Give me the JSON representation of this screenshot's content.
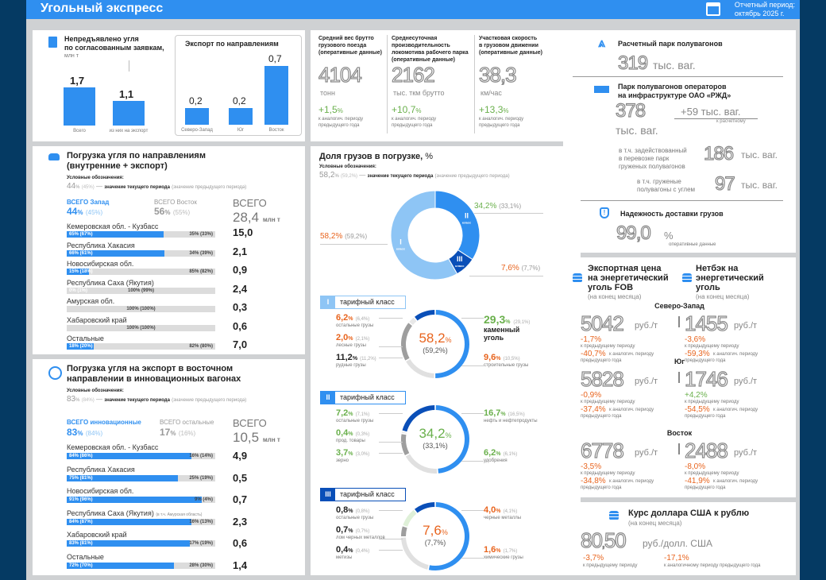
{
  "header": {
    "title": "Угольный экспресс",
    "period_line1": "Отчетный период:",
    "period_line2": "октябрь 2025 г."
  },
  "undelivered": {
    "title_line1": "Непредъявлено угля",
    "title_line2": "по согласованным заявкам,",
    "unit": "млн т",
    "bars": [
      {
        "label": "Всего",
        "value": "1,7",
        "v": 1.7
      },
      {
        "label": "из них на экспорт",
        "value": "1,1",
        "v": 1.1
      }
    ],
    "export_title": "Экспорт по направлениям",
    "export_bars": [
      {
        "label": "Северо-Запад",
        "value": "0,2",
        "v": 0.2
      },
      {
        "label": "Юг",
        "value": "0,2",
        "v": 0.2
      },
      {
        "label": "Восток",
        "value": "0,7",
        "v": 0.7
      }
    ]
  },
  "kpis": [
    {
      "title": [
        "Средний вес брутто",
        "грузового поезда",
        "(оперативные данные)"
      ],
      "value": "4104",
      "unit": "тонн",
      "delta": "+1,5",
      "pct": "%",
      "note": [
        "к аналогич. периоду",
        "предыдущего года"
      ]
    },
    {
      "title": [
        "Среднесуточная",
        "производительность",
        "локомотива рабочего парка",
        "(оперативные данные)"
      ],
      "value": "2162",
      "unit": "тыс. ткм брутто",
      "delta": "+10,7",
      "pct": "%",
      "note": [
        "к аналогич. периоду",
        "предыдущего года"
      ]
    },
    {
      "title": [
        "Участковая скорость",
        "в грузовом движении",
        "(оперативные данные)"
      ],
      "value": "38,3",
      "unit": "км/час",
      "delta": "+13,3",
      "pct": "%",
      "note": [
        "к аналогич. периоду",
        "предыдущего года"
      ]
    }
  ],
  "fleet": {
    "calc_title": "Расчетный парк полувагонов",
    "calc_value": "319",
    "calc_unit": "тыс. ваг.",
    "ops_title_line1": "Парк полувагонов операторов",
    "ops_title_line2": "на инфраструктуре ОАО «РЖД»",
    "ops_value": "378",
    "ops_unit": "тыс. ваг.",
    "ops_delta": "+59 тыс. ваг.",
    "ops_delta_note": "к расчетному",
    "engaged_label": [
      "в т.ч. задействованный",
      "в перевозке парк",
      "груженых полувагонов"
    ],
    "engaged_value": "186",
    "engaged_unit": "тыс. ваг.",
    "coal_label": [
      "в т.ч. груженые",
      "полувагоны с углем"
    ],
    "coal_value": "97",
    "coal_unit": "тыс. ваг.",
    "reliability_title": "Надежность доставки грузов",
    "reliability_value": "99,0",
    "reliability_pct": "%",
    "reliability_note": "оперативные данные"
  },
  "loading": {
    "title_line1": "Погрузка угля по направлениям",
    "title_line2": "(внутренние + экспорт)",
    "legend_title": "Условные обозначения:",
    "legend_cur": "44",
    "legend_pct": "%",
    "legend_prev": "(45%)",
    "legend_dash": "—",
    "legend_bold": "значение текущего периода",
    "legend_rest": "(значение предыдущего периода)",
    "west_label": "ВСЕГО Запад",
    "west_value": "44",
    "west_prev": "(45%)",
    "east_label": "ВСЕГО Восток",
    "east_value": "56",
    "east_prev": "(55%)",
    "total_label": "ВСЕГО",
    "total_value": "28,4",
    "total_unit": "млн т",
    "pct": "%",
    "rows": [
      {
        "name": "Кемеровская обл. - Кузбасс",
        "west": 65,
        "left": "65% (67%)",
        "right": "35% (33%)",
        "total": "15,0"
      },
      {
        "name": "Республика Хакасия",
        "west": 66,
        "left": "66% (61%)",
        "right": "34% (39%)",
        "total": "2,1"
      },
      {
        "name": "Новосибирская обл.",
        "west": 15,
        "left": "15% (18%)",
        "right": "85% (82%)",
        "total": "0,9"
      },
      {
        "name": "Республика Саха (Якутия)",
        "west": 0,
        "left": "0% (1%)",
        "right": "100% (99%)",
        "total": "2,4"
      },
      {
        "name": "Амурская обл.",
        "west": 0,
        "left": "",
        "right": "100% (100%)",
        "total": "0,3"
      },
      {
        "name": "Хабаровский край",
        "west": 0,
        "left": "",
        "right": "100% (100%)",
        "total": "0,6"
      },
      {
        "name": "Остальные",
        "west": 18,
        "left": "18% (20%)",
        "right": "82% (80%)",
        "total": "7,0"
      }
    ]
  },
  "innov": {
    "title_line1": "Погрузка угля на экспорт в восточном",
    "title_line2": "направлении в инновационных вагонах",
    "legend_title": "Условные обозначения:",
    "legend_cur": "83",
    "legend_pct": "%",
    "legend_prev": "(84%)",
    "legend_dash": "—",
    "legend_bold": "значение текущего периода",
    "legend_rest": "(значение предыдущего периода)",
    "in_label": "ВСЕГО инновационные",
    "in_value": "83",
    "in_prev": "(84%)",
    "other_label": "ВСЕГО остальные",
    "other_value": "17",
    "other_prev": "(16%)",
    "total_label": "ВСЕГО",
    "total_value": "10,5",
    "total_unit": "млн т",
    "pct": "%",
    "rows": [
      {
        "name": "Кемеровская обл. - Кузбасс",
        "note": "",
        "share": 84,
        "left": "84% (86%)",
        "right": "16% (14%)",
        "total": "4,9"
      },
      {
        "name": "Республика Хакасия",
        "note": "",
        "share": 75,
        "left": "75% (81%)",
        "right": "25% (19%)",
        "total": "0,5"
      },
      {
        "name": "Новосибирская обл.",
        "note": "",
        "share": 91,
        "left": "91% (96%)",
        "right": "9% (4%)",
        "total": "0,7"
      },
      {
        "name": "Республика Саха (Якутия)",
        "note": "(в т.ч. Амурская область)",
        "share": 84,
        "left": "84% (87%)",
        "right": "16% (13%)",
        "total": "2,3"
      },
      {
        "name": "Хабаровский край",
        "note": "",
        "share": 83,
        "left": "83% (81%)",
        "right": "17% (19%)",
        "total": "0,6"
      },
      {
        "name": "Остальные",
        "note": "",
        "share": 72,
        "left": "72% (70%)",
        "right": "28% (30%)",
        "total": "1,4"
      }
    ]
  },
  "share": {
    "title": "Доля грузов в погрузке,",
    "title_pct": "%",
    "legend_title": "Условные обозначения:",
    "legend_cur": "58,2",
    "legend_pct": "%",
    "legend_prev": "(59,2%)",
    "legend_dash": "—",
    "legend_bold": "значение текущего периода",
    "legend_rest": "(значение предыдущего периода)",
    "classes": [
      {
        "roman": "I",
        "word": "класс",
        "value": "58,2%",
        "prev": "(59,2%)",
        "v": 58.2,
        "color": "#8ec5f5"
      },
      {
        "roman": "II",
        "word": "класс",
        "value": "34,2%",
        "prev": "(33,1%)",
        "v": 34.2,
        "color": "#2f8ff0"
      },
      {
        "roman": "III",
        "word": "класс",
        "value": "7,6%",
        "prev": "(7,7%)",
        "v": 7.6,
        "color": "#0a4fb8"
      }
    ]
  },
  "tariff": [
    {
      "num": "I",
      "label": "тарифный класс",
      "center": "58,2",
      "center_pct": "%",
      "center_prev": "(59,2%)",
      "center_color": "#e8641e",
      "left": [
        {
          "v": "6,2",
          "p": "%",
          "prev": "(6,4%)",
          "name": "остальные грузы",
          "color": "#e8641e"
        },
        {
          "v": "2,0",
          "p": "%",
          "prev": "(2,1%)",
          "name": "лесные грузы",
          "color": "#e8641e"
        },
        {
          "v": "11,2",
          "p": "%",
          "prev": "(11,2%)",
          "name": "рудные грузы",
          "color": "#222"
        }
      ],
      "right": [
        {
          "v": "29,3",
          "p": "%",
          "prev": "(29,1%)",
          "name": "каменный уголь",
          "color": "#6ab04c"
        },
        {
          "v": "9,6",
          "p": "%",
          "prev": "(10,5%)",
          "name": "строительные грузы",
          "color": "#e8641e"
        }
      ]
    },
    {
      "num": "II",
      "label": "тарифный класс",
      "center": "34,2",
      "center_pct": "%",
      "center_prev": "(33,1%)",
      "center_color": "#6ab04c",
      "left": [
        {
          "v": "7,2",
          "p": "%",
          "prev": "(7,1%)",
          "name": "остальные грузы",
          "color": "#6ab04c"
        },
        {
          "v": "0,4",
          "p": "%",
          "prev": "(0,3%)",
          "name": "прод. товары",
          "color": "#6ab04c"
        },
        {
          "v": "3,7",
          "p": "%",
          "prev": "(3,0%)",
          "name": "зерно",
          "color": "#6ab04c"
        }
      ],
      "right": [
        {
          "v": "16,7",
          "p": "%",
          "prev": "(16,5%)",
          "name": "нефть и нефтепродукты",
          "color": "#6ab04c"
        },
        {
          "v": "6,2",
          "p": "%",
          "prev": "(6,1%)",
          "name": "удобрения",
          "color": "#6ab04c"
        }
      ]
    },
    {
      "num": "III",
      "label": "тарифный класс",
      "center": "7,6",
      "center_pct": "%",
      "center_prev": "(7,7%)",
      "center_color": "#e8641e",
      "left": [
        {
          "v": "0,8",
          "p": "%",
          "prev": "(0,8%)",
          "name": "остальные грузы",
          "color": "#222"
        },
        {
          "v": "0,7",
          "p": "%",
          "prev": "(0,7%)",
          "name": "лом черных металлов",
          "color": "#222"
        },
        {
          "v": "0,4",
          "p": "%",
          "prev": "(0,4%)",
          "name": "метизы",
          "color": "#222"
        }
      ],
      "right": [
        {
          "v": "4,0",
          "p": "%",
          "prev": "(4,1%)",
          "name": "черные металлы",
          "color": "#e8641e"
        },
        {
          "v": "1,6",
          "p": "%",
          "prev": "(1,7%)",
          "name": "химические грузы",
          "color": "#e8641e"
        }
      ]
    }
  ],
  "prices": {
    "fob_title": [
      "Экспортная цена",
      "на энергетический",
      "уголь FOB"
    ],
    "fob_sub": "(на конец месяца)",
    "net_title": [
      "Нетбэк на",
      "энергетический",
      "уголь"
    ],
    "net_sub": "(на конец месяца)",
    "unit": "руб./т",
    "prev_note": "к предыдущему периоду",
    "year_note": "к аналогич. периоду",
    "year_note2": "предыдущего года",
    "regions": [
      {
        "name": "Северо-Запад",
        "fob": "5042",
        "fob_d1": "-1,7%",
        "fob_d2": "-40,7%",
        "net": "1455",
        "net_d1": "-3,6%",
        "net_d2": "-59,3%",
        "net_d1_color": "#e8641e"
      },
      {
        "name": "Юг",
        "fob": "5828",
        "fob_d1": "-0,9%",
        "fob_d2": "-37,4%",
        "net": "1746",
        "net_d1": "+4,2%",
        "net_d2": "-54,5%",
        "net_d1_color": "#6ab04c"
      },
      {
        "name": "Восток",
        "fob": "6778",
        "fob_d1": "-3,5%",
        "fob_d2": "-34,8%",
        "net": "2488",
        "net_d1": "-8,0%",
        "net_d2": "-41,9%",
        "net_d1_color": "#e8641e"
      }
    ]
  },
  "usd": {
    "title": "Курс доллара США к рублю",
    "sub": "(на конец месяца)",
    "value_int": "80",
    "value_sep": ",",
    "value_frac": "50",
    "unit": "руб./долл. США",
    "d1": "-3,7%",
    "d1_note": "к предыдущему периоду",
    "d2": "-17,1%",
    "d2_note": "к аналогичному периоду предыдущего года"
  }
}
